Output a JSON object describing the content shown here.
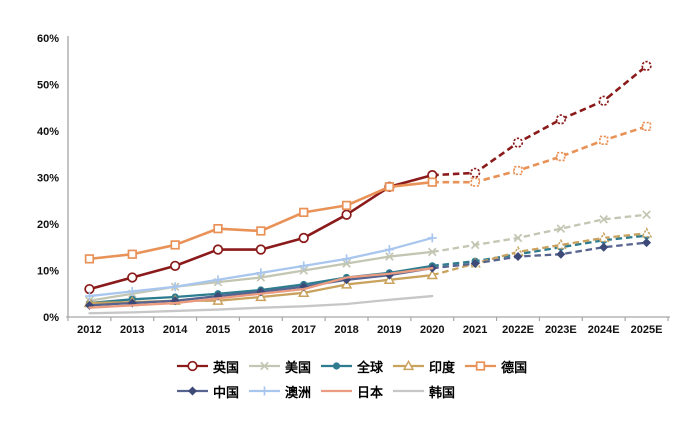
{
  "chart_data": {
    "type": "line",
    "title": "",
    "xlabel": "",
    "ylabel": "",
    "categories": [
      "2012",
      "2013",
      "2014",
      "2015",
      "2016",
      "2017",
      "2018",
      "2019",
      "2020",
      "2021",
      "2022E",
      "2023E",
      "2024E",
      "2025E"
    ],
    "y_ticks": [
      "0%",
      "10%",
      "20%",
      "30%",
      "40%",
      "50%",
      "60%"
    ],
    "ylim": [
      0,
      60
    ],
    "grid": false,
    "legend_position": "bottom",
    "solid_until_index": 8,
    "dashed_note": "segments after 2020 are forecast (dashed)",
    "axis_color": "#a6a6a6",
    "series": [
      {
        "name": "英国",
        "key": "uk",
        "color": "#8b1a1a",
        "marker": "circle-open",
        "values": [
          6,
          8.5,
          11,
          14.5,
          14.5,
          17,
          22,
          28,
          30.5,
          31,
          37.5,
          42.5,
          46.5,
          54
        ]
      },
      {
        "name": "美国",
        "key": "us",
        "color": "#c3c6b2",
        "marker": "x",
        "values": [
          3.5,
          5,
          6.5,
          7.5,
          8.5,
          10,
          11.5,
          13,
          14,
          15.5,
          17,
          19,
          21,
          22
        ]
      },
      {
        "name": "全球",
        "key": "global",
        "color": "#2e7c8f",
        "marker": "circle-filled",
        "values": [
          3,
          3.8,
          4.3,
          5,
          5.8,
          7,
          8.5,
          9.5,
          11,
          12,
          13.5,
          15,
          16.5,
          17.5
        ]
      },
      {
        "name": "印度",
        "key": "india",
        "color": "#c9a25e",
        "marker": "triangle-open",
        "values": [
          3,
          3.2,
          3.5,
          3.5,
          4.3,
          5.2,
          7,
          8,
          9,
          11.5,
          14,
          15.5,
          17,
          18
        ]
      },
      {
        "name": "德国",
        "key": "germany",
        "color": "#e99258",
        "marker": "square-open",
        "values": [
          12.5,
          13.5,
          15.5,
          19,
          18.5,
          22.5,
          24,
          28,
          29,
          29,
          31.5,
          34.5,
          38,
          41
        ]
      },
      {
        "name": "中国",
        "key": "china",
        "color": "#56648f",
        "marker_color": "#3d4a78",
        "marker": "diamond-filled",
        "values": [
          2.5,
          3,
          3.5,
          4.5,
          5.4,
          6.5,
          8,
          9,
          10.5,
          11.5,
          13,
          13.5,
          15,
          16
        ]
      },
      {
        "name": "澳洲",
        "key": "australia",
        "color": "#a9c7ee",
        "marker": "plus",
        "values": [
          4.5,
          5.5,
          6.5,
          8,
          9.5,
          11,
          12.5,
          14.5,
          17
        ]
      },
      {
        "name": "日本",
        "key": "japan",
        "color": "#eb9c80",
        "marker": "none",
        "values": [
          2,
          2.5,
          3,
          4,
          5,
          6,
          8.5,
          9.3,
          10.5
        ]
      },
      {
        "name": "韩国",
        "key": "korea",
        "color": "#c7c7c7",
        "marker": "none",
        "values": [
          0.8,
          1,
          1.3,
          1.6,
          2,
          2.3,
          2.8,
          3.7,
          4.5
        ]
      }
    ]
  }
}
